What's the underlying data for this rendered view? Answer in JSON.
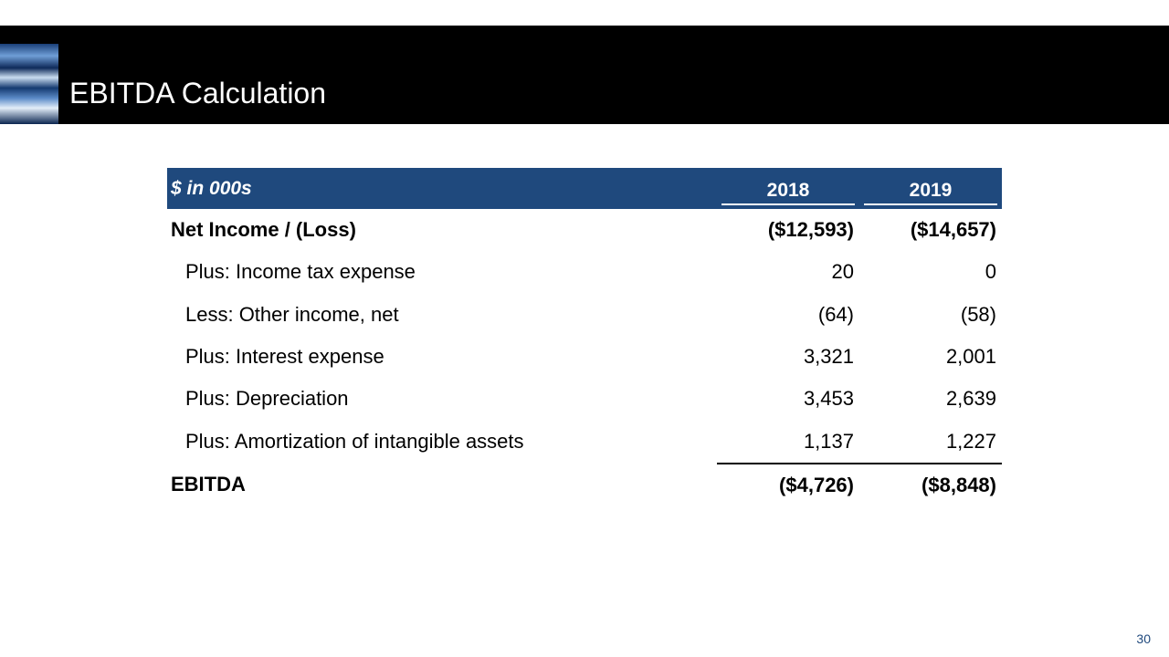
{
  "header": {
    "title": "EBITDA Calculation"
  },
  "table": {
    "header": [
      "$ in 000s",
      "2018",
      "2019"
    ],
    "rows": [
      [
        "Net Income / (Loss)",
        "($12,593)",
        "($14,657)"
      ],
      [
        "Plus: Income tax expense",
        "20",
        "0"
      ],
      [
        "Less: Other income, net",
        "(64)",
        "(58)"
      ],
      [
        "Plus: Interest expense",
        "3,321",
        "2,001"
      ],
      [
        "Plus: Depreciation",
        "3,453",
        "2,639"
      ],
      [
        "Plus: Amortization of intangible assets",
        "1,137",
        "1,227"
      ],
      [
        "EBITDA",
        "($4,726)",
        "($8,848)"
      ]
    ]
  },
  "footer": {
    "page": "30"
  }
}
